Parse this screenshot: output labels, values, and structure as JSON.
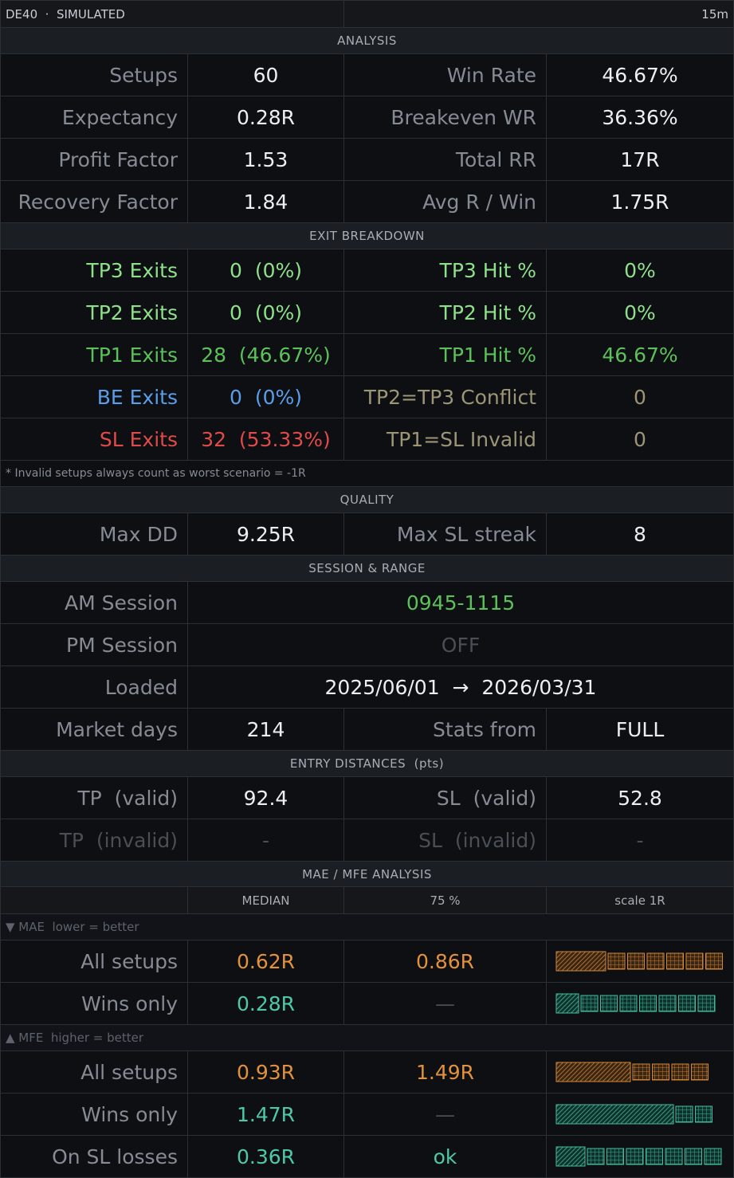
{
  "header": {
    "title": "DE40  ·  SIMULATED",
    "timeframe": "15m"
  },
  "analysis": {
    "title": "ANALYSIS",
    "rows": [
      [
        "Setups",
        "60",
        "Win Rate",
        "46.67%"
      ],
      [
        "Expectancy",
        "0.28R",
        "Breakeven WR",
        "36.36%"
      ],
      [
        "Profit Factor",
        "1.53",
        "Total RR",
        "17R"
      ],
      [
        "Recovery Factor",
        "1.84",
        "Avg R / Win",
        "1.75R"
      ]
    ]
  },
  "exit_breakdown": {
    "title": "EXIT BREAKDOWN",
    "rows": [
      [
        "TP3 Exits",
        "0  (0%)",
        "TP3 Hit %",
        "0%"
      ],
      [
        "TP2 Exits",
        "0  (0%)",
        "TP2 Hit %",
        "0%"
      ],
      [
        "TP1 Exits",
        "28  (46.67%)",
        "TP1 Hit %",
        "46.67%"
      ],
      [
        "BE Exits",
        "0  (0%)",
        "TP2=TP3 Conflict",
        "0"
      ],
      [
        "SL Exits",
        "32  (53.33%)",
        "TP1=SL Invalid",
        "0"
      ]
    ],
    "note": "* Invalid setups always count as worst scenario = -1R"
  },
  "quality": {
    "title": "QUALITY",
    "rows": [
      [
        "Max DD",
        "9.25R",
        "Max SL streak",
        "8"
      ]
    ]
  },
  "session_range": {
    "title": "SESSION & RANGE",
    "sessions": [
      [
        "AM Session",
        "0945-1115"
      ],
      [
        "PM Session",
        "OFF"
      ],
      [
        "Loaded",
        "2025/06/01  →  2026/03/31"
      ]
    ],
    "rows": [
      [
        "Market days",
        "214",
        "Stats from",
        "FULL"
      ]
    ]
  },
  "entry_distances": {
    "title": "ENTRY DISTANCES  (pts)",
    "rows": [
      [
        "TP  (valid)",
        "92.4",
        "SL  (valid)",
        "52.8"
      ],
      [
        "TP  (invalid)",
        "-",
        "SL  (invalid)",
        "-"
      ]
    ]
  },
  "mae_mfe": {
    "title": "MAE / MFE ANALYSIS",
    "columns": [
      "MEDIAN",
      "75 %",
      "scale 1R"
    ],
    "groups": [
      {
        "label": "▼ MAE  lower = better",
        "rows": [
          [
            "All setups",
            "0.62R",
            "0.86R"
          ],
          [
            "Wins only",
            "0.28R",
            "—"
          ]
        ]
      },
      {
        "label": "▲ MFE  higher = better",
        "rows": [
          [
            "All setups",
            "0.93R",
            "1.49R"
          ],
          [
            "Wins only",
            "1.47R",
            "—"
          ],
          [
            "On SL losses",
            "0.36R",
            "ok"
          ]
        ]
      }
    ]
  }
}
